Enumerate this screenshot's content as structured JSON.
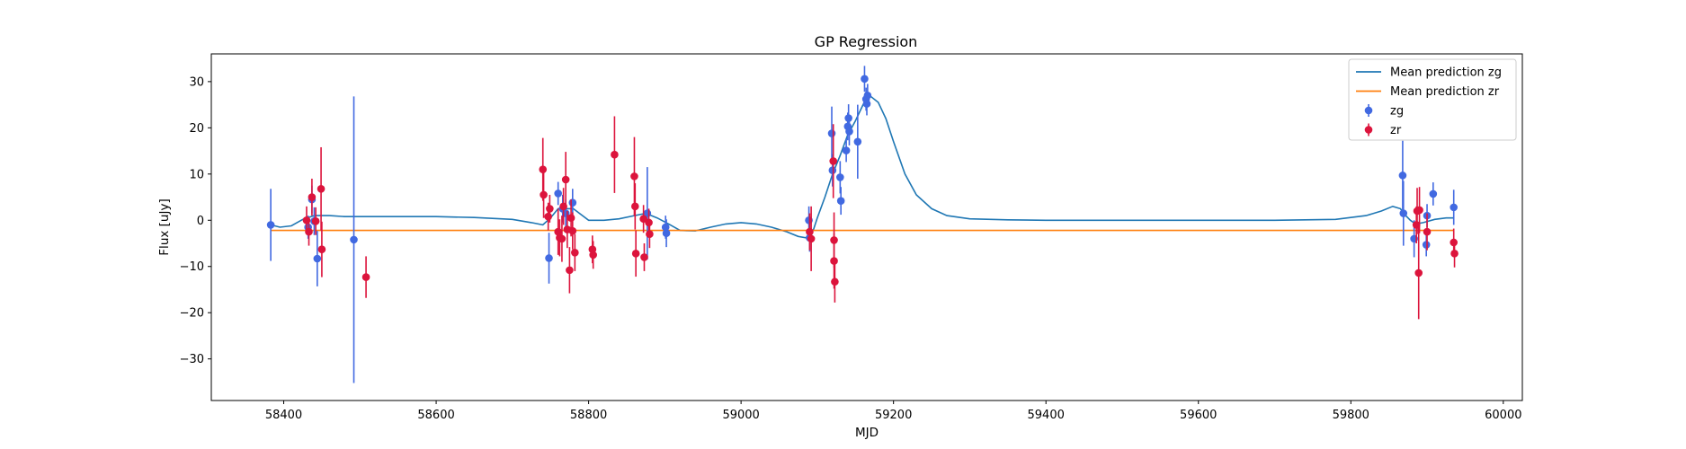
{
  "chart_data": {
    "type": "scatter",
    "title": "GP Regression",
    "xlabel": "MJD",
    "ylabel": "Flux [uJy]",
    "xlim": [
      58305,
      60025
    ],
    "ylim": [
      -39,
      36
    ],
    "xticks": [
      58400,
      58600,
      58800,
      59000,
      59200,
      59400,
      59600,
      59800,
      60000
    ],
    "yticks": [
      -30,
      -20,
      -10,
      0,
      10,
      20,
      30
    ],
    "grid": false,
    "legend_position": "top-right",
    "legend": [
      "Mean prediction zg",
      "Mean prediction zr",
      "zg",
      "zr"
    ],
    "colors": {
      "zg_points": "#4169e1",
      "zr_points": "#dc143c",
      "zg_mean": "#1f77b4",
      "zr_mean": "#ff7f0e"
    },
    "series": [
      {
        "name": "Mean prediction zg",
        "kind": "line",
        "x": [
          58383,
          58395,
          58410,
          58425,
          58440,
          58460,
          58480,
          58500,
          58550,
          58600,
          58650,
          58700,
          58725,
          58740,
          58750,
          58760,
          58780,
          58800,
          58820,
          58840,
          58860,
          58875,
          58890,
          58905,
          58920,
          58940,
          58960,
          58980,
          59000,
          59020,
          59040,
          59060,
          59075,
          59085,
          59090,
          59095,
          59100,
          59110,
          59120,
          59130,
          59140,
          59150,
          59160,
          59165,
          59170,
          59180,
          59190,
          59200,
          59215,
          59230,
          59250,
          59270,
          59300,
          59350,
          59400,
          59500,
          59600,
          59700,
          59780,
          59820,
          59840,
          59855,
          59865,
          59872,
          59878,
          59885,
          59895,
          59910,
          59925,
          59935
        ],
        "y": [
          -1.0,
          -1.5,
          -1.2,
          0.2,
          1.0,
          1.0,
          0.8,
          0.8,
          0.8,
          0.8,
          0.6,
          0.2,
          -0.5,
          -1.0,
          0.5,
          2.5,
          2.5,
          0.0,
          0.0,
          0.3,
          1.0,
          1.5,
          0.5,
          -0.8,
          -2.2,
          -2.3,
          -1.5,
          -0.8,
          -0.5,
          -0.8,
          -1.5,
          -2.5,
          -3.5,
          -3.8,
          -3.0,
          -2.0,
          0.5,
          5.0,
          10.0,
          14.0,
          18.5,
          21.5,
          25.0,
          26.5,
          26.8,
          25.5,
          22.0,
          17.0,
          10.0,
          5.5,
          2.5,
          1.0,
          0.3,
          0.1,
          0.0,
          0.0,
          0.0,
          0.0,
          0.2,
          1.0,
          2.0,
          3.0,
          2.5,
          1.0,
          0.0,
          -0.8,
          -0.5,
          0.2,
          0.5,
          0.5
        ]
      },
      {
        "name": "Mean prediction zr",
        "kind": "line",
        "x": [
          58383,
          59935
        ],
        "y": [
          -2.2,
          -2.2
        ]
      },
      {
        "name": "zg",
        "kind": "errorbar",
        "points": [
          [
            58383,
            -1.0,
            7.8
          ],
          [
            58432,
            -1.5,
            2.5
          ],
          [
            58437,
            4.5,
            3.0
          ],
          [
            58440,
            -0.2,
            3.0
          ],
          [
            58444,
            -8.3,
            6.0
          ],
          [
            58492,
            -4.2,
            31.0
          ],
          [
            58748,
            -8.2,
            5.5
          ],
          [
            58760,
            5.8,
            2.5
          ],
          [
            58766,
            2.5,
            3.0
          ],
          [
            58770,
            1.5,
            3.0
          ],
          [
            58779,
            3.8,
            3.0
          ],
          [
            58877,
            1.5,
            10.0
          ],
          [
            58901,
            -1.5,
            2.5
          ],
          [
            58902,
            -2.8,
            3.0
          ],
          [
            59089,
            0.0,
            3.0
          ],
          [
            59090,
            -3.8,
            3.0
          ],
          [
            59119,
            18.8,
            5.8
          ],
          [
            59120,
            10.8,
            3.5
          ],
          [
            59130,
            9.3,
            3.5
          ],
          [
            59131,
            4.2,
            3.0
          ],
          [
            59138,
            15.1,
            2.5
          ],
          [
            59140,
            20.3,
            3.0
          ],
          [
            59141,
            22.1,
            3.0
          ],
          [
            59142,
            19.2,
            3.0
          ],
          [
            59153,
            17.0,
            8.0
          ],
          [
            59162,
            30.6,
            2.8
          ],
          [
            59164,
            26.2,
            2.5
          ],
          [
            59165,
            25.2,
            2.5
          ],
          [
            59166,
            27.0,
            2.5
          ],
          [
            59868,
            9.7,
            7.5
          ],
          [
            59869,
            1.5,
            7.0
          ],
          [
            59883,
            -4.0,
            4.0
          ],
          [
            59899,
            -5.3,
            2.5
          ],
          [
            59900,
            1.0,
            2.5
          ],
          [
            59908,
            5.7,
            2.5
          ],
          [
            59935,
            2.8,
            3.8
          ]
        ]
      },
      {
        "name": "zr",
        "kind": "errorbar",
        "points": [
          [
            58430,
            0.0,
            3.0
          ],
          [
            58433,
            -2.5,
            3.0
          ],
          [
            58437,
            5.0,
            4.0
          ],
          [
            58442,
            -0.2,
            3.0
          ],
          [
            58449,
            6.8,
            9.0
          ],
          [
            58450,
            -6.3,
            6.0
          ],
          [
            58508,
            -12.3,
            4.5
          ],
          [
            58740,
            11.0,
            6.8
          ],
          [
            58741,
            5.5,
            5.0
          ],
          [
            58747,
            0.8,
            3.0
          ],
          [
            58749,
            2.5,
            3.0
          ],
          [
            58760,
            -2.5,
            5.0
          ],
          [
            58762,
            -3.8,
            4.0
          ],
          [
            58765,
            -4.0,
            5.0
          ],
          [
            58767,
            3.0,
            4.0
          ],
          [
            58770,
            8.8,
            6.0
          ],
          [
            58772,
            -2.0,
            4.0
          ],
          [
            58775,
            -10.8,
            5.0
          ],
          [
            58777,
            0.5,
            4.0
          ],
          [
            58779,
            -2.3,
            4.0
          ],
          [
            58782,
            -7.0,
            4.0
          ],
          [
            58805,
            -6.3,
            3.0
          ],
          [
            58806,
            -7.5,
            3.0
          ],
          [
            58834,
            14.2,
            8.3
          ],
          [
            58860,
            9.5,
            8.5
          ],
          [
            58861,
            3.0,
            5.0
          ],
          [
            58862,
            -7.2,
            5.0
          ],
          [
            58872,
            0.3,
            3.0
          ],
          [
            58873,
            -8.0,
            3.0
          ],
          [
            58879,
            -0.5,
            3.0
          ],
          [
            58880,
            -3.0,
            3.0
          ],
          [
            59090,
            -2.5,
            4.0
          ],
          [
            59092,
            -4.0,
            7.0
          ],
          [
            59121,
            12.8,
            8.0
          ],
          [
            59122,
            -4.3,
            6.0
          ],
          [
            59122,
            -8.8,
            6.0
          ],
          [
            59123,
            -13.3,
            4.5
          ],
          [
            59886,
            -1.0,
            4.0
          ],
          [
            59887,
            2.0,
            5.0
          ],
          [
            59889,
            -11.4,
            10.0
          ],
          [
            59890,
            2.2,
            5.0
          ],
          [
            59900,
            -2.5,
            4.0
          ],
          [
            59935,
            -4.8,
            3.0
          ],
          [
            59936,
            -7.2,
            3.0
          ]
        ]
      }
    ]
  }
}
